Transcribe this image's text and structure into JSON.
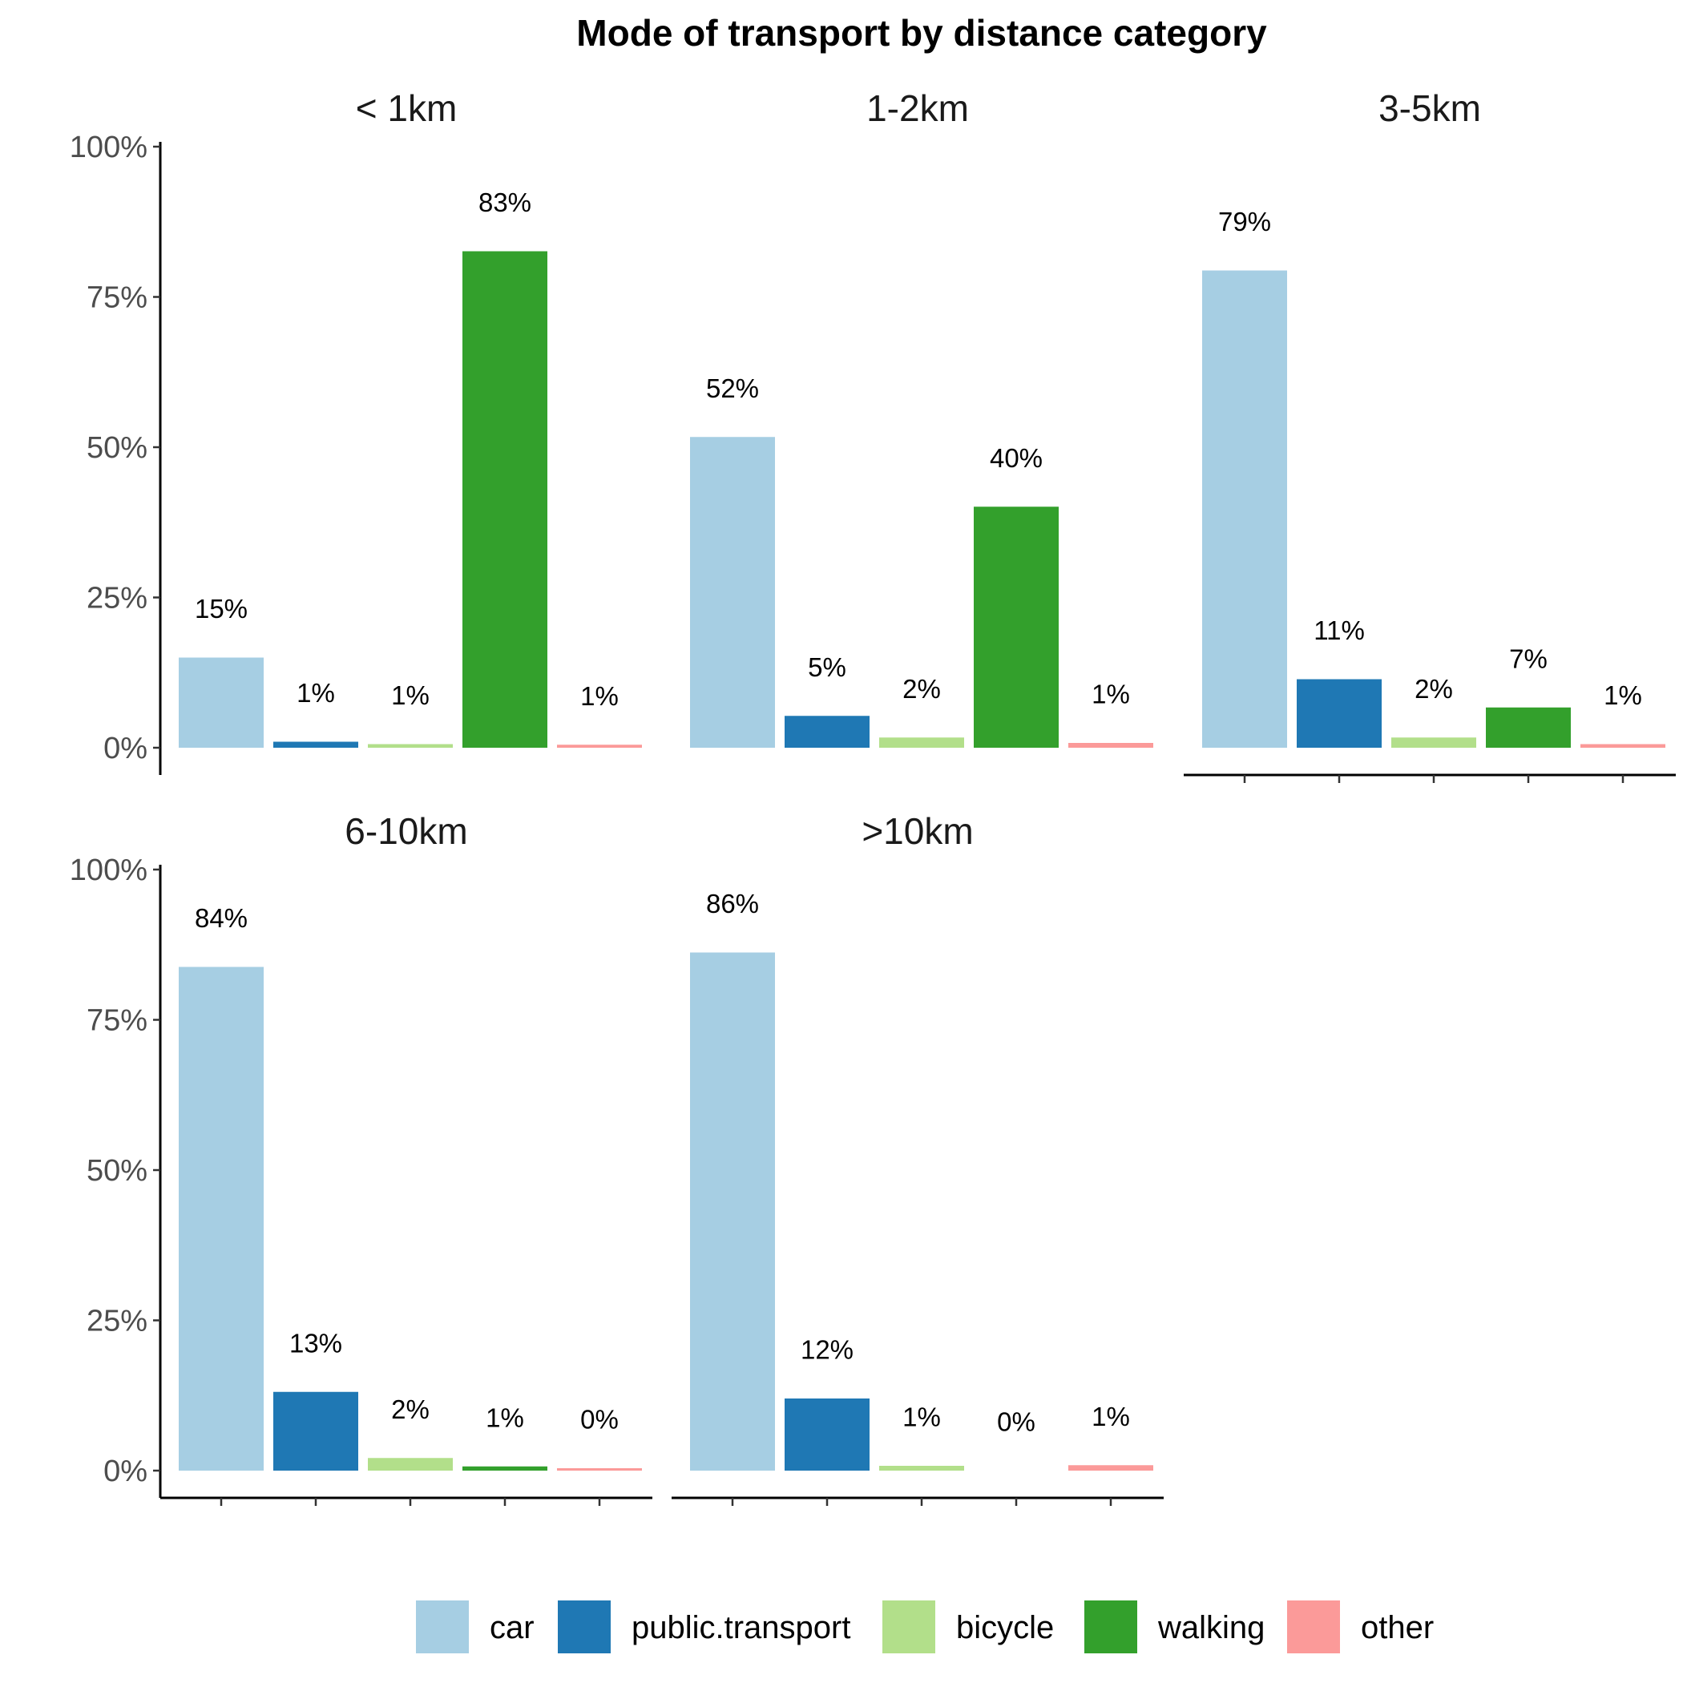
{
  "chart_data": {
    "type": "bar",
    "title": "Mode of transport by distance category",
    "xlabel": "",
    "ylabel": "",
    "ylim": [
      0,
      1
    ],
    "y_ticks": [
      "0%",
      "25%",
      "50%",
      "75%",
      "100%"
    ],
    "y_tick_values": [
      0,
      0.25,
      0.5,
      0.75,
      1.0
    ],
    "grid": false,
    "legend_position": "bottom",
    "categories": [
      "car",
      "public.transport",
      "bicycle",
      "walking",
      "other"
    ],
    "colors": {
      "car": "#a6cee3",
      "public.transport": "#1f78b4",
      "bicycle": "#b2df8a",
      "walking": "#33a02c",
      "other": "#fb9a99"
    },
    "facets": [
      {
        "name": "< 1km",
        "values": [
          0.15,
          0.01,
          0.006,
          0.826,
          0.005
        ],
        "labels": [
          "15%",
          "1%",
          "1%",
          "83%",
          "1%"
        ]
      },
      {
        "name": "1-2km",
        "values": [
          0.517,
          0.053,
          0.017,
          0.401,
          0.008
        ],
        "labels": [
          "52%",
          "5%",
          "2%",
          "40%",
          "1%"
        ]
      },
      {
        "name": "3-5km",
        "values": [
          0.794,
          0.114,
          0.017,
          0.067,
          0.006
        ],
        "labels": [
          "79%",
          "11%",
          "2%",
          "7%",
          "1%"
        ]
      },
      {
        "name": "6-10km",
        "values": [
          0.838,
          0.131,
          0.021,
          0.007,
          0.004
        ],
        "labels": [
          "84%",
          "13%",
          "2%",
          "1%",
          "0%"
        ]
      },
      {
        "name": ">10km",
        "values": [
          0.862,
          0.12,
          0.008,
          0.0,
          0.009
        ],
        "labels": [
          "86%",
          "12%",
          "1%",
          "0%",
          "1%"
        ]
      }
    ]
  }
}
